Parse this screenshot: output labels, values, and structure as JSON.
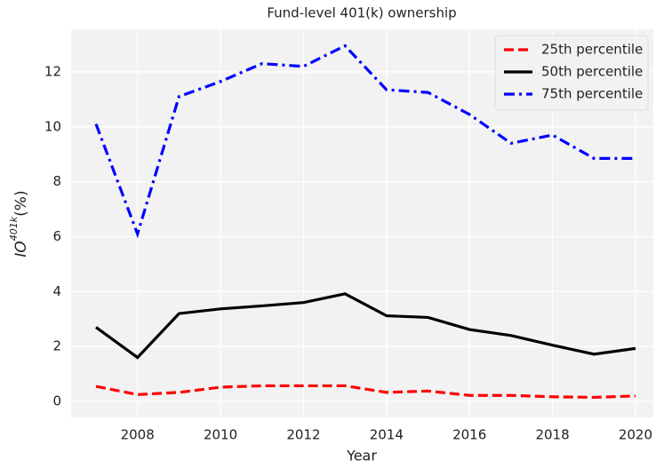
{
  "chart_data": {
    "type": "line",
    "title": "Fund-level 401(k) ownership",
    "xlabel": "Year",
    "ylabel": {
      "base": "IO",
      "superscript": "401k",
      "suffix": "(%)"
    },
    "x": [
      2007,
      2008,
      2009,
      2010,
      2011,
      2012,
      2013,
      2014,
      2015,
      2016,
      2017,
      2018,
      2019,
      2020
    ],
    "series": [
      {
        "name": "25th percentile",
        "color": "#ff0000",
        "dash": "dashed",
        "values": [
          0.55,
          0.25,
          0.33,
          0.52,
          0.57,
          0.57,
          0.57,
          0.33,
          0.38,
          0.22,
          0.22,
          0.17,
          0.15,
          0.2
        ]
      },
      {
        "name": "50th percentile",
        "color": "#000000",
        "dash": "solid",
        "values": [
          2.7,
          1.6,
          3.2,
          3.37,
          3.48,
          3.6,
          3.92,
          3.12,
          3.06,
          2.62,
          2.4,
          2.05,
          1.72,
          1.93
        ]
      },
      {
        "name": "75th percentile",
        "color": "#0000ff",
        "dash": "dashdot",
        "values": [
          10.1,
          6.1,
          11.1,
          11.65,
          12.3,
          12.2,
          12.95,
          11.35,
          11.25,
          10.45,
          9.4,
          9.7,
          8.85,
          8.85
        ]
      }
    ],
    "xlim": [
      2006.4,
      2020.43
    ],
    "xticks": [
      2008,
      2010,
      2012,
      2014,
      2016,
      2018,
      2020
    ],
    "ylim": [
      -0.58,
      13.55
    ],
    "yticks": [
      0,
      2,
      4,
      6,
      8,
      10,
      12
    ],
    "grid": true,
    "legend": "upper right"
  }
}
